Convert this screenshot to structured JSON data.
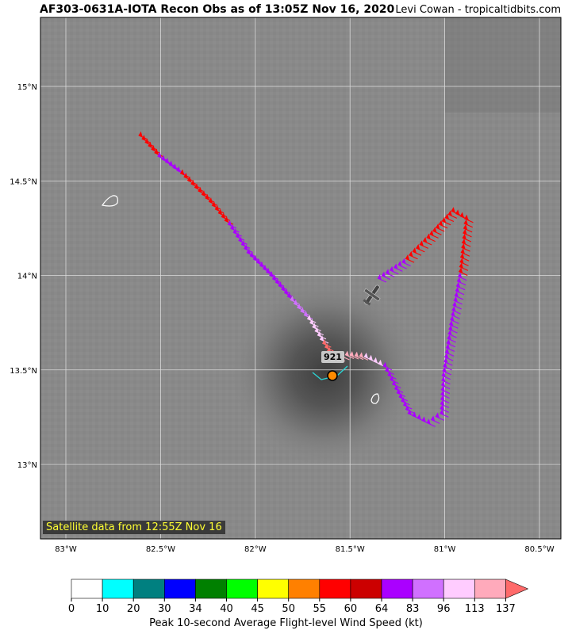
{
  "title": "AF303-0631A-IOTA Recon Obs as of 13:05Z Nov 16, 2020",
  "credit": "Levi Cowan - tropicaltidbits.com",
  "satellite_label": "Satellite data from 12:55Z Nov 16",
  "pressure_label": "921",
  "lon_ticks": [
    "83°W",
    "82.5°W",
    "82°W",
    "81.5°W",
    "81°W",
    "80.5°W"
  ],
  "lat_ticks": [
    "15°N",
    "14.5°N",
    "14°N",
    "13.5°N",
    "13°N"
  ],
  "colorbar": {
    "label": "Peak 10-second Average Flight-level Wind Speed (kt)",
    "ticks": [
      "0",
      "10",
      "20",
      "30",
      "34",
      "40",
      "45",
      "50",
      "55",
      "60",
      "64",
      "83",
      "96",
      "113",
      "137"
    ],
    "colors": [
      "#ffffff",
      "#00ffff",
      "#008080",
      "#0000ff",
      "#008000",
      "#00ff00",
      "#ffff00",
      "#ff8000",
      "#ff0000",
      "#cc0000",
      "#aa00ff",
      "#d070ff",
      "#ffccff",
      "#ffaabb",
      "#ff6a6a"
    ]
  },
  "flight_track": [
    {
      "lon": -82.57,
      "lat": 14.72,
      "color": "#ff0000"
    },
    {
      "lon": -82.47,
      "lat": 14.61,
      "color": "#aa00ff"
    },
    {
      "lon": -82.35,
      "lat": 14.52,
      "color": "#ff0000"
    },
    {
      "lon": -82.2,
      "lat": 14.37,
      "color": "#ff0000"
    },
    {
      "lon": -82.1,
      "lat": 14.25,
      "color": "#aa00ff"
    },
    {
      "lon": -82.0,
      "lat": 14.1,
      "color": "#aa00ff"
    },
    {
      "lon": -81.88,
      "lat": 13.98,
      "color": "#aa00ff"
    },
    {
      "lon": -81.77,
      "lat": 13.85,
      "color": "#d070ff"
    },
    {
      "lon": -81.68,
      "lat": 13.75,
      "color": "#ffccff"
    },
    {
      "lon": -81.6,
      "lat": 13.62,
      "color": "#ff6a6a"
    },
    {
      "lon": -81.55,
      "lat": 13.54,
      "color": "#ffaabb"
    },
    {
      "lon": -81.48,
      "lat": 13.56,
      "color": "#ffaabb"
    },
    {
      "lon": -81.38,
      "lat": 13.55,
      "color": "#ffccff"
    },
    {
      "lon": -81.28,
      "lat": 13.5,
      "color": "#aa00ff"
    },
    {
      "lon": -81.22,
      "lat": 13.38,
      "color": "#aa00ff"
    },
    {
      "lon": -81.15,
      "lat": 13.25,
      "color": "#aa00ff"
    },
    {
      "lon": -81.05,
      "lat": 13.2,
      "color": "#aa00ff"
    },
    {
      "lon": -80.98,
      "lat": 13.25,
      "color": "#aa00ff"
    },
    {
      "lon": -80.97,
      "lat": 13.45,
      "color": "#aa00ff"
    },
    {
      "lon": -80.93,
      "lat": 13.72,
      "color": "#aa00ff"
    },
    {
      "lon": -80.88,
      "lat": 14.0,
      "color": "#ff0000"
    },
    {
      "lon": -80.85,
      "lat": 14.28,
      "color": "#ff0000"
    },
    {
      "lon": -80.92,
      "lat": 14.32,
      "color": "#ff0000"
    },
    {
      "lon": -81.05,
      "lat": 14.18,
      "color": "#ff0000"
    },
    {
      "lon": -81.18,
      "lat": 14.05,
      "color": "#aa00ff"
    },
    {
      "lon": -81.33,
      "lat": 13.95,
      "color": "#aa00ff"
    }
  ],
  "center_fix": {
    "lon": -81.59,
    "lat": 13.47
  }
}
